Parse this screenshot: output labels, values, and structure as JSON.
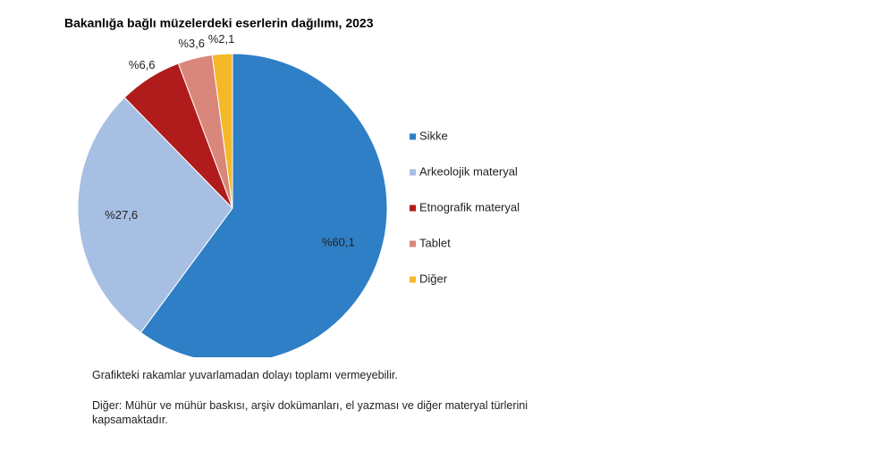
{
  "chart_data": {
    "type": "pie",
    "title": "Bakanlığa bağlı müzelerdeki eserlerin dağılımı, 2023",
    "categories": [
      "Sikke",
      "Arkeolojik materyal",
      "Etnografik materyal",
      "Tablet",
      "Diğer"
    ],
    "values": [
      60.1,
      27.6,
      6.6,
      3.6,
      2.1
    ],
    "value_labels": [
      "%60,1",
      "%27,6",
      "%6,6",
      "%3,6",
      "%2,1"
    ],
    "colors": [
      "#2e7fc6",
      "#a6bfe3",
      "#b01c1c",
      "#d9877a",
      "#f5b829"
    ],
    "legend": "right",
    "notes": [
      "Grafikteki rakamlar yuvarlamadan dolayı toplamı vermeyebilir.",
      "Diğer: Mühür ve mühür baskısı, arşiv dokümanları, el yazması ve diğer materyal türlerini kapsamaktadır."
    ]
  }
}
